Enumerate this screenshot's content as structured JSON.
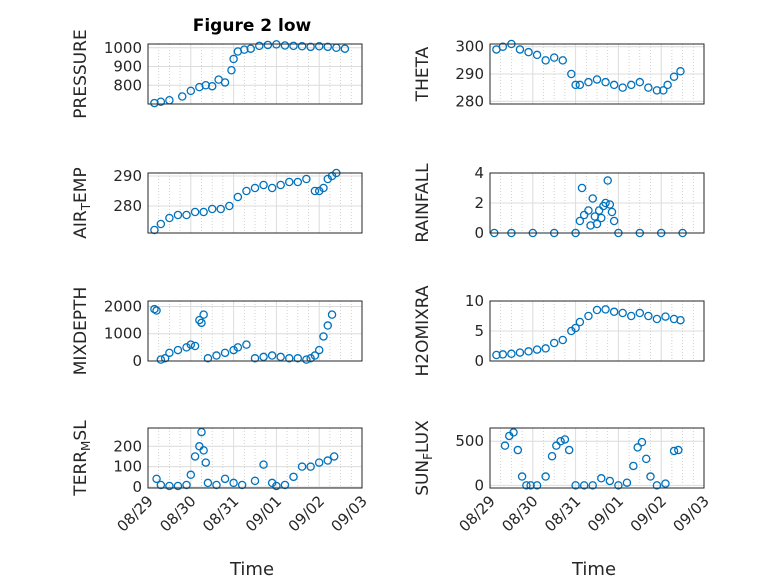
{
  "figure": {
    "title": "Figure 2 low",
    "x_label": "Time",
    "x_ticks": [
      "08/29",
      "08/30",
      "08/31",
      "09/01",
      "09/02",
      "09/03"
    ]
  },
  "colors": {
    "marker": "#0072BD",
    "axes": "#262626",
    "grid": "#dcdcdc"
  },
  "chart_data": [
    {
      "type": "scatter",
      "ylabel": "PRESSURE",
      "ylim": [
        700,
        1020
      ],
      "yticks": [
        800,
        900,
        1000
      ],
      "grid": true,
      "x": [
        0.15,
        0.3,
        0.5,
        0.8,
        1.0,
        1.2,
        1.35,
        1.5,
        1.65,
        1.8,
        1.95,
        2.0,
        2.1,
        2.25,
        2.4,
        2.6,
        2.8,
        3.0,
        3.2,
        3.4,
        3.6,
        3.8,
        4.0,
        4.2,
        4.4,
        4.6
      ],
      "y": [
        705,
        712,
        720,
        740,
        770,
        790,
        800,
        795,
        830,
        815,
        880,
        940,
        980,
        990,
        995,
        1010,
        1015,
        1018,
        1012,
        1010,
        1008,
        1005,
        1008,
        1005,
        1000,
        995
      ]
    },
    {
      "type": "scatter",
      "ylabel": "THETA",
      "ylim": [
        279,
        301
      ],
      "yticks": [
        280,
        290,
        300
      ],
      "grid": true,
      "x": [
        0.15,
        0.3,
        0.5,
        0.7,
        0.9,
        1.1,
        1.3,
        1.5,
        1.7,
        1.9,
        2.0,
        2.1,
        2.3,
        2.5,
        2.7,
        2.9,
        3.1,
        3.3,
        3.5,
        3.7,
        3.9,
        4.05,
        4.15,
        4.3,
        4.45
      ],
      "y": [
        299,
        300,
        301,
        299,
        298,
        297,
        295,
        296,
        295,
        290,
        286,
        286,
        287,
        288,
        287,
        286,
        285,
        286,
        287,
        285,
        284,
        284,
        286,
        289,
        291
      ]
    },
    {
      "type": "scatter",
      "ylabel": "AIR_TEMP",
      "ylim": [
        271,
        291
      ],
      "yticks": [
        280,
        290
      ],
      "grid": true,
      "x": [
        0.15,
        0.3,
        0.5,
        0.7,
        0.9,
        1.1,
        1.3,
        1.5,
        1.7,
        1.9,
        2.1,
        2.3,
        2.5,
        2.7,
        2.9,
        3.1,
        3.3,
        3.5,
        3.7,
        3.9,
        4.0,
        4.1,
        4.2,
        4.3,
        4.4
      ],
      "y": [
        272,
        274,
        276,
        277,
        277,
        278,
        278,
        279,
        279,
        280,
        283,
        285,
        286,
        287,
        286,
        287,
        288,
        288,
        289,
        285,
        285,
        286,
        289,
        290,
        291
      ]
    },
    {
      "type": "scatter",
      "ylabel": "RAINFALL",
      "ylim": [
        0,
        4
      ],
      "yticks": [
        0,
        2,
        4
      ],
      "grid": true,
      "x": [
        0.1,
        0.5,
        1.0,
        1.5,
        2.0,
        2.1,
        2.15,
        2.2,
        2.3,
        2.35,
        2.4,
        2.45,
        2.5,
        2.55,
        2.6,
        2.65,
        2.7,
        2.75,
        2.8,
        2.85,
        2.9,
        3.0,
        3.5,
        4.0,
        4.5
      ],
      "y": [
        0,
        0,
        0,
        0,
        0,
        0.8,
        3.0,
        1.2,
        1.5,
        0.5,
        2.3,
        1.1,
        0.6,
        1.5,
        1.0,
        1.8,
        2.0,
        3.5,
        1.9,
        1.4,
        0.8,
        0,
        0,
        0,
        0
      ]
    },
    {
      "type": "scatter",
      "ylabel": "MIXDEPTH",
      "ylim": [
        0,
        2200
      ],
      "yticks": [
        0,
        1000,
        2000
      ],
      "grid": true,
      "x": [
        0.15,
        0.2,
        0.3,
        0.4,
        0.5,
        0.7,
        0.9,
        1.0,
        1.1,
        1.2,
        1.25,
        1.3,
        1.4,
        1.6,
        1.8,
        2.0,
        2.1,
        2.3,
        2.5,
        2.7,
        2.9,
        3.1,
        3.3,
        3.5,
        3.7,
        3.8,
        3.9,
        4.0,
        4.1,
        4.2,
        4.3
      ],
      "y": [
        1900,
        1850,
        50,
        100,
        300,
        400,
        500,
        600,
        550,
        1500,
        1400,
        1700,
        100,
        200,
        300,
        400,
        500,
        600,
        100,
        150,
        200,
        150,
        100,
        100,
        50,
        100,
        200,
        400,
        900,
        1300,
        1700
      ]
    },
    {
      "type": "scatter",
      "ylabel": "H2OMIXRA",
      "ylim": [
        0,
        10
      ],
      "yticks": [
        0,
        5,
        10
      ],
      "grid": true,
      "x": [
        0.15,
        0.3,
        0.5,
        0.7,
        0.9,
        1.1,
        1.3,
        1.5,
        1.7,
        1.9,
        2.0,
        2.1,
        2.3,
        2.5,
        2.7,
        2.9,
        3.1,
        3.3,
        3.5,
        3.7,
        3.9,
        4.1,
        4.3,
        4.45
      ],
      "y": [
        1.0,
        1.1,
        1.2,
        1.4,
        1.6,
        1.9,
        2.1,
        3.0,
        3.5,
        5.0,
        5.5,
        6.5,
        7.5,
        8.5,
        8.6,
        8.2,
        8.0,
        7.5,
        8.0,
        7.5,
        7.0,
        7.4,
        7.0,
        6.8
      ]
    },
    {
      "type": "scatter",
      "ylabel": "TERR_MSL",
      "ylim": [
        -5,
        290
      ],
      "yticks": [
        0,
        100,
        200
      ],
      "grid": true,
      "x": [
        0.2,
        0.3,
        0.5,
        0.7,
        0.9,
        1.0,
        1.1,
        1.2,
        1.25,
        1.3,
        1.35,
        1.4,
        1.6,
        1.8,
        2.0,
        2.2,
        2.5,
        2.7,
        2.9,
        3.0,
        3.2,
        3.4,
        3.6,
        3.8,
        4.0,
        4.2,
        4.35
      ],
      "y": [
        40,
        10,
        5,
        5,
        10,
        60,
        150,
        200,
        270,
        180,
        120,
        20,
        10,
        40,
        20,
        10,
        30,
        110,
        20,
        5,
        10,
        50,
        100,
        100,
        120,
        130,
        150
      ]
    },
    {
      "type": "scatter",
      "ylabel": "SUN_FLUX",
      "ylim": [
        -30,
        650
      ],
      "yticks": [
        0,
        500
      ],
      "grid": true,
      "x": [
        0.35,
        0.45,
        0.55,
        0.65,
        0.75,
        0.85,
        0.95,
        1.1,
        1.3,
        1.45,
        1.55,
        1.65,
        1.75,
        1.85,
        2.0,
        2.2,
        2.4,
        2.6,
        2.8,
        3.0,
        3.2,
        3.35,
        3.45,
        3.55,
        3.65,
        3.75,
        3.9,
        4.1,
        4.3,
        4.4
      ],
      "y": [
        450,
        560,
        600,
        400,
        100,
        0,
        0,
        0,
        100,
        330,
        450,
        500,
        520,
        400,
        0,
        0,
        0,
        80,
        50,
        0,
        30,
        220,
        430,
        490,
        300,
        100,
        0,
        20,
        390,
        400
      ]
    }
  ],
  "panels": [
    {
      "ylabel_base": "PRESSURE",
      "ylabel_sub": "",
      "ylabel_tail": ""
    },
    {
      "ylabel_base": "THETA",
      "ylabel_sub": "",
      "ylabel_tail": ""
    },
    {
      "ylabel_base": "AIR",
      "ylabel_sub": "T",
      "ylabel_tail": "EMP"
    },
    {
      "ylabel_base": "RAINFALL",
      "ylabel_sub": "",
      "ylabel_tail": ""
    },
    {
      "ylabel_base": "MIXDEPTH",
      "ylabel_sub": "",
      "ylabel_tail": ""
    },
    {
      "ylabel_base": "H2OMIXRA",
      "ylabel_sub": "",
      "ylabel_tail": ""
    },
    {
      "ylabel_base": "TERR",
      "ylabel_sub": "M",
      "ylabel_tail": "SL"
    },
    {
      "ylabel_base": "SUN",
      "ylabel_sub": "F",
      "ylabel_tail": "LUX"
    }
  ]
}
